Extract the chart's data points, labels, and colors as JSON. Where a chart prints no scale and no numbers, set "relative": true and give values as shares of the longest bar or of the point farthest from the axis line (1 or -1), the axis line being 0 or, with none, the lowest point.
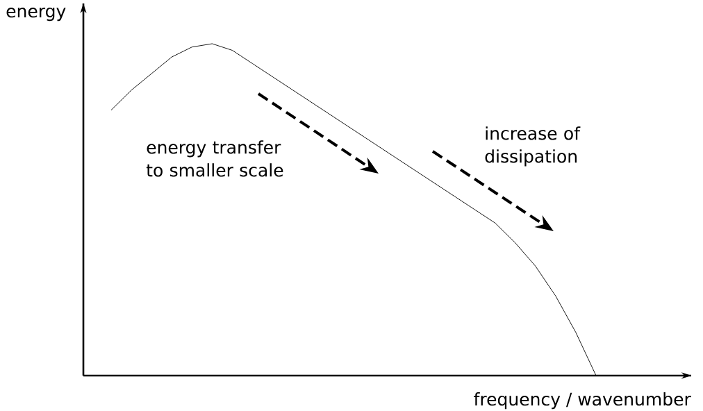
{
  "chart_data": {
    "type": "line",
    "relative": true,
    "xlabel": "frequency / wavenumber",
    "ylabel": "energy",
    "categories": [
      null,
      null,
      null,
      null,
      null,
      null,
      null,
      null,
      null,
      null,
      null,
      null,
      null,
      null,
      null,
      null,
      null,
      null,
      null,
      null,
      null,
      null,
      null,
      null,
      null
    ],
    "values": [
      0.8,
      0.86,
      0.91,
      0.96,
      0.99,
      1,
      0.98,
      0.94,
      0.9,
      0.86,
      0.82,
      0.78,
      0.74,
      0.7,
      0.66,
      0.62,
      0.58,
      0.54,
      0.5,
      0.46,
      0.4,
      0.33,
      0.24,
      0.13,
      0
    ],
    "color": "#000000",
    "annotations": [
      "energy transfer to smaller scale",
      "increase of dissipation"
    ]
  }
}
